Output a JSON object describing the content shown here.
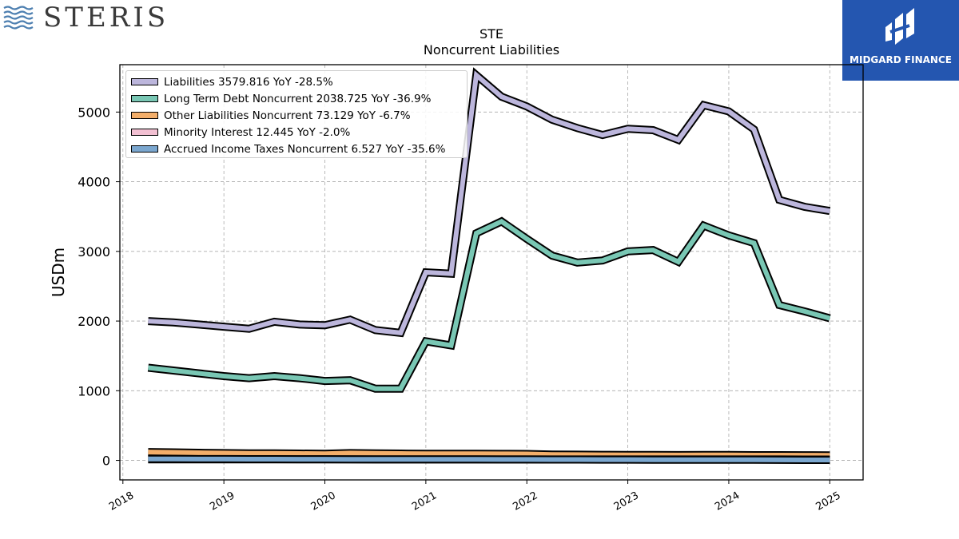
{
  "branding": {
    "company_logo_text": "STERIS",
    "partner_logo_text": "MIDGARD FINANCE"
  },
  "chart_data": {
    "type": "line",
    "title": "STE",
    "subtitle": "Noncurrent  Liabilities",
    "xlabel": "",
    "ylabel": "USDm",
    "ylim": [
      -280,
      5680
    ],
    "xlim": [
      2017.97,
      2025.33
    ],
    "x_ticks": [
      "2018",
      "2019",
      "2020",
      "2021",
      "2022",
      "2023",
      "2024",
      "2025"
    ],
    "y_ticks": [
      0,
      1000,
      2000,
      3000,
      4000,
      5000
    ],
    "grid": true,
    "legend_position": "top-left",
    "x": [
      2018.25,
      2018.5,
      2018.75,
      2019.0,
      2019.25,
      2019.5,
      2019.75,
      2020.0,
      2020.25,
      2020.5,
      2020.75,
      2021.0,
      2021.25,
      2021.5,
      2021.75,
      2022.0,
      2022.25,
      2022.5,
      2022.75,
      2023.0,
      2023.25,
      2023.5,
      2023.75,
      2024.0,
      2024.25,
      2024.5,
      2024.75,
      2025.0
    ],
    "series": [
      {
        "name": "Liabilities",
        "legend_label": "Liabilities  3579.816 YoY -28.5%",
        "color": "#bcb6dc",
        "values": [
          2000,
          1980,
          1950,
          1920,
          1890,
          1990,
          1950,
          1940,
          2020,
          1870,
          1830,
          2700,
          2680,
          5530,
          5220,
          5080,
          4890,
          4770,
          4670,
          4760,
          4740,
          4600,
          5100,
          5010,
          4750,
          3740,
          3640,
          3580
        ]
      },
      {
        "name": "Long Term Debt Noncurrent",
        "legend_label": "Long Term Debt Noncurrent  2038.725 YoY -36.9%",
        "color": "#79c7b4",
        "values": [
          1330,
          1290,
          1250,
          1210,
          1180,
          1210,
          1180,
          1140,
          1150,
          1030,
          1030,
          1710,
          1650,
          3260,
          3430,
          3180,
          2940,
          2840,
          2870,
          3000,
          3020,
          2850,
          3370,
          3230,
          3120,
          2230,
          2140,
          2040
        ]
      },
      {
        "name": "Other Liabilities Noncurrent",
        "legend_label": "Other Liabilities Noncurrent  73.129 YoY -6.7%",
        "color": "#f3ae6a",
        "values": [
          120,
          115,
          110,
          105,
          100,
          100,
          98,
          95,
          105,
          100,
          98,
          95,
          95,
          95,
          94,
          93,
          85,
          82,
          80,
          79,
          78,
          77,
          78,
          78,
          75,
          75,
          74,
          73
        ]
      },
      {
        "name": "Minority Interest",
        "legend_label": "Minority Interest  12.445 YoY -2.0%",
        "color": "#f2c0d2",
        "values": [
          15,
          15,
          15,
          14,
          14,
          14,
          14,
          14,
          14,
          13,
          13,
          13,
          13,
          13,
          13,
          13,
          13,
          13,
          13,
          13,
          13,
          13,
          13,
          13,
          13,
          13,
          12.5,
          12.445
        ]
      },
      {
        "name": "Accrued Income Taxes Noncurrent",
        "legend_label": "Accrued Income Taxes Noncurrent  6.527 YoY -35.6%",
        "color": "#7ba7cf",
        "values": [
          20,
          20,
          19,
          19,
          18,
          18,
          17,
          17,
          16,
          16,
          15,
          15,
          14,
          14,
          13,
          13,
          12,
          12,
          11,
          11,
          10,
          10,
          10,
          10,
          9,
          8,
          7,
          6.527
        ]
      }
    ]
  }
}
